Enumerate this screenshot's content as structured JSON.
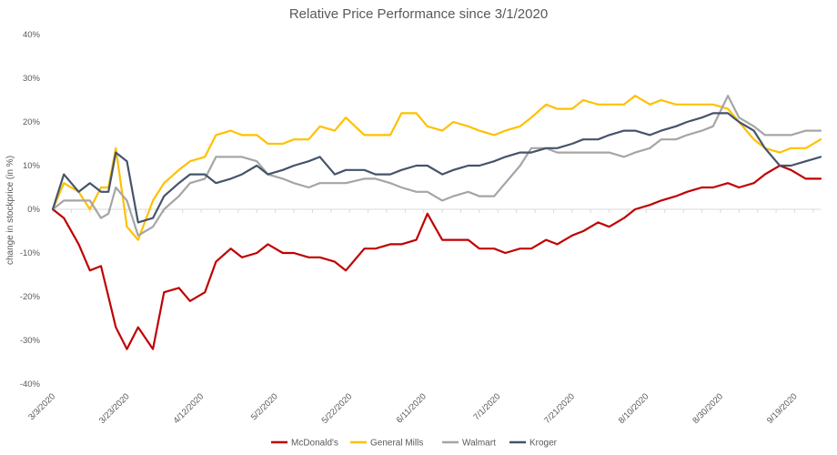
{
  "chart_data": {
    "type": "line",
    "title": "Relative Price Performance since 3/1/2020",
    "ylabel": "change in stockprice (in %)",
    "xlabel": "",
    "ylim": [
      -40,
      40
    ],
    "yticks": [
      -40,
      -30,
      -20,
      -10,
      0,
      10,
      20,
      30,
      40
    ],
    "ytick_labels": [
      "-40%",
      "-30%",
      "-20%",
      "-10%",
      "0%",
      "10%",
      "20%",
      "30%",
      "40%"
    ],
    "x_tick_labels": [
      "3/3/2020",
      "3/23/2020",
      "4/12/2020",
      "5/2/2020",
      "5/22/2020",
      "6/11/2020",
      "7/1/2020",
      "7/21/2020",
      "8/10/2020",
      "8/30/2020",
      "9/19/2020"
    ],
    "xlim": [
      "3/3/2020",
      "9/26/2020"
    ],
    "grid": false,
    "legend_position": "bottom",
    "x": [
      "3/3/2020",
      "3/6/2020",
      "3/10/2020",
      "3/13/2020",
      "3/16/2020",
      "3/18/2020",
      "3/20/2020",
      "3/23/2020",
      "3/26/2020",
      "3/30/2020",
      "4/2/2020",
      "4/6/2020",
      "4/9/2020",
      "4/13/2020",
      "4/16/2020",
      "4/20/2020",
      "4/23/2020",
      "4/27/2020",
      "4/30/2020",
      "5/4/2020",
      "5/7/2020",
      "5/11/2020",
      "5/14/2020",
      "5/18/2020",
      "5/21/2020",
      "5/26/2020",
      "5/29/2020",
      "6/2/2020",
      "6/5/2020",
      "6/9/2020",
      "6/12/2020",
      "6/16/2020",
      "6/19/2020",
      "6/23/2020",
      "6/26/2020",
      "6/30/2020",
      "7/3/2020",
      "7/7/2020",
      "7/10/2020",
      "7/14/2020",
      "7/17/2020",
      "7/21/2020",
      "7/24/2020",
      "7/28/2020",
      "7/31/2020",
      "8/4/2020",
      "8/7/2020",
      "8/11/2020",
      "8/14/2020",
      "8/18/2020",
      "8/21/2020",
      "8/25/2020",
      "8/28/2020",
      "9/1/2020",
      "9/4/2020",
      "9/8/2020",
      "9/11/2020",
      "9/15/2020",
      "9/18/2020",
      "9/22/2020",
      "9/26/2020"
    ],
    "series": [
      {
        "name": "McDonald's",
        "color": "#c00000",
        "values": [
          0,
          -2,
          -8,
          -14,
          -13,
          -20,
          -27,
          -32,
          -27,
          -32,
          -19,
          -18,
          -21,
          -19,
          -12,
          -9,
          -11,
          -10,
          -8,
          -10,
          -10,
          -11,
          -11,
          -12,
          -14,
          -9,
          -9,
          -8,
          -8,
          -7,
          -1,
          -7,
          -7,
          -7,
          -9,
          -9,
          -10,
          -9,
          -9,
          -7,
          -8,
          -6,
          -5,
          -3,
          -4,
          -2,
          0,
          1,
          2,
          3,
          4,
          5,
          5,
          6,
          5,
          6,
          8,
          10,
          9,
          7,
          7
        ]
      },
      {
        "name": "General Mills",
        "color": "#ffc000",
        "values": [
          0,
          6,
          4,
          0,
          5,
          5,
          14,
          -4,
          -7,
          2,
          6,
          9,
          11,
          12,
          17,
          18,
          17,
          17,
          15,
          15,
          16,
          16,
          19,
          18,
          21,
          17,
          17,
          17,
          22,
          22,
          19,
          18,
          20,
          19,
          18,
          17,
          18,
          19,
          21,
          24,
          23,
          23,
          25,
          24,
          24,
          24,
          26,
          24,
          25,
          24,
          24,
          24,
          24,
          23,
          20,
          16,
          14,
          13,
          14,
          14,
          16
        ]
      },
      {
        "name": "Walmart",
        "color": "#a5a5a5",
        "values": [
          0,
          2,
          2,
          2,
          -2,
          -1,
          5,
          2,
          -6,
          -4,
          0,
          3,
          6,
          7,
          12,
          12,
          12,
          11,
          8,
          7,
          6,
          5,
          6,
          6,
          6,
          7,
          7,
          6,
          5,
          4,
          4,
          2,
          3,
          4,
          3,
          3,
          6,
          10,
          14,
          14,
          13,
          13,
          13,
          13,
          13,
          12,
          13,
          14,
          16,
          16,
          17,
          18,
          19,
          26,
          21,
          19,
          17,
          17,
          17,
          18,
          18
        ]
      },
      {
        "name": "Kroger",
        "color": "#44546a",
        "values": [
          0,
          8,
          4,
          6,
          4,
          4,
          13,
          11,
          -3,
          -2,
          3,
          6,
          8,
          8,
          6,
          7,
          8,
          10,
          8,
          9,
          10,
          11,
          12,
          8,
          9,
          9,
          8,
          8,
          9,
          10,
          10,
          8,
          9,
          10,
          10,
          11,
          12,
          13,
          13,
          14,
          14,
          15,
          16,
          16,
          17,
          18,
          18,
          17,
          18,
          19,
          20,
          21,
          22,
          22,
          20,
          18,
          14,
          10,
          10,
          11,
          12
        ]
      }
    ]
  }
}
